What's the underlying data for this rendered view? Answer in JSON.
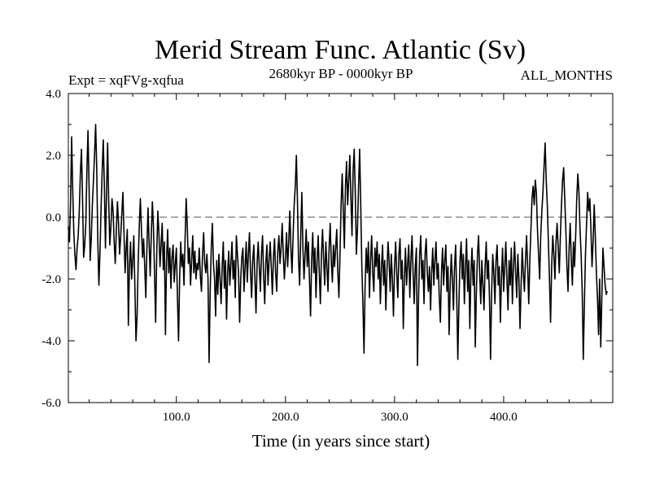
{
  "chart_data": {
    "type": "line",
    "title": "Merid Stream Func. Atlantic (Sv)",
    "left_label": "Expt = xqFVg-xqfua",
    "center_label": "2680kyr BP - 0000kyr BP",
    "right_label": "ALL_MONTHS",
    "xlabel": "Time (in years since start)",
    "ylabel": "",
    "xlim": [
      1,
      500
    ],
    "ylim": [
      -6.0,
      4.0
    ],
    "x_ticks": [
      100,
      200,
      300,
      400
    ],
    "x_tick_labels": [
      "100.0",
      "200.0",
      "300.0",
      "400.0"
    ],
    "y_ticks": [
      -6,
      -4,
      -2,
      0,
      2,
      4
    ],
    "y_tick_labels": [
      "-6.0",
      "-4.0",
      "-2.0",
      "0.0",
      "2.0",
      "4.0"
    ],
    "reference_line": 0.0,
    "series": [
      {
        "name": "Merid Stream Func. Atlantic",
        "x_start": 1,
        "x_step": 1,
        "values": [
          -0.3,
          -0.8,
          0.4,
          2.6,
          0.9,
          -0.5,
          -1.2,
          -1.7,
          -1.0,
          -0.6,
          0.2,
          1.4,
          2.2,
          0.6,
          -1.3,
          -0.9,
          -0.2,
          1.5,
          2.8,
          1.0,
          -1.4,
          -0.7,
          0.4,
          1.2,
          2.0,
          3.0,
          1.6,
          -0.8,
          -2.2,
          -1.1,
          0.3,
          1.5,
          2.5,
          1.0,
          -1.0,
          0.8,
          2.4,
          0.5,
          -0.9,
          -0.3,
          0.6,
          0.2,
          -0.8,
          -1.5,
          -0.4,
          0.5,
          -0.2,
          -1.2,
          -0.6,
          0.1,
          0.8,
          -0.5,
          -1.8,
          -1.0,
          -0.4,
          -3.5,
          -1.6,
          -0.8,
          -2.0,
          -1.4,
          -0.6,
          -2.3,
          -4.0,
          -3.2,
          -1.5,
          -0.3,
          0.6,
          -0.4,
          -1.3,
          -0.7,
          -1.6,
          -2.6,
          -1.0,
          0.3,
          -0.8,
          -1.9,
          -0.6,
          0.5,
          -0.3,
          -1.8,
          -3.4,
          -1.2,
          0.2,
          -0.5,
          -1.6,
          -0.9,
          -0.2,
          -1.7,
          -0.8,
          -3.8,
          -1.4,
          -0.4,
          -1.8,
          -1.0,
          -2.3,
          -1.3,
          -0.9,
          -2.1,
          -1.5,
          -1.0,
          -2.6,
          -4.0,
          -2.0,
          -0.8,
          -1.6,
          -1.2,
          -2.2,
          -0.7,
          0.6,
          -0.3,
          -1.5,
          -1.0,
          -2.2,
          -1.4,
          -0.6,
          -1.8,
          -1.1,
          -2.0,
          -1.5,
          -1.7,
          -1.0,
          -1.9,
          -2.4,
          -1.2,
          -0.5,
          -1.5,
          -1.8,
          -1.2,
          -2.0,
          -4.7,
          -2.4,
          -1.0,
          -0.2,
          -1.5,
          -2.0,
          -3.2,
          -1.4,
          -2.5,
          -1.2,
          -2.0,
          -2.8,
          -1.6,
          -0.8,
          -2.3,
          -1.4,
          -3.3,
          -1.8,
          -1.1,
          -2.2,
          -1.5,
          -0.8,
          -2.0,
          -1.4,
          -2.6,
          -0.6,
          -1.2,
          -1.8,
          -3.4,
          -2.0,
          -1.3,
          -1.0,
          -2.4,
          -1.6,
          -0.8,
          -2.1,
          -1.2,
          -0.5,
          -1.8,
          -2.6,
          -1.4,
          -0.9,
          -2.0,
          -3.1,
          -1.5,
          -0.8,
          -1.6,
          -2.4,
          -1.2,
          -0.6,
          -1.9,
          -2.8,
          -1.5,
          -0.9,
          -2.2,
          -1.4,
          -0.8,
          -1.6,
          -2.5,
          -1.3,
          -0.7,
          -1.8,
          -2.4,
          -1.1,
          -0.6,
          -1.5,
          -1.0,
          -0.2,
          -1.2,
          -2.0,
          -1.3,
          -0.5,
          -1.6,
          -0.8,
          0.2,
          -1.0,
          -1.8,
          -0.6,
          0.4,
          1.0,
          2.0,
          0.5,
          -1.4,
          -2.2,
          -0.6,
          0.8,
          -1.0,
          -2.0,
          -1.2,
          -0.4,
          -1.6,
          -0.8,
          -2.0,
          -3.2,
          -1.4,
          -0.5,
          -1.8,
          -1.0,
          -2.6,
          -1.4,
          -0.6,
          -1.8,
          -2.8,
          -1.2,
          -0.4,
          -1.4,
          -2.2,
          -0.8,
          -1.6,
          -2.4,
          -1.0,
          -0.2,
          -1.4,
          -2.1,
          -0.9,
          -1.6,
          -1.0,
          -0.4,
          -1.8,
          -2.6,
          -1.2,
          0.4,
          1.4,
          0.2,
          -1.0,
          1.0,
          1.8,
          0.4,
          1.2,
          2.0,
          0.6,
          -0.6,
          1.5,
          2.2,
          0.8,
          -1.2,
          -0.4,
          1.0,
          2.2,
          0.4,
          -1.6,
          -2.8,
          -4.4,
          -2.2,
          -1.0,
          -1.8,
          -0.8,
          -2.6,
          -1.4,
          -0.6,
          -1.8,
          -2.4,
          -1.0,
          -1.6,
          -0.8,
          -2.0,
          -1.2,
          -2.8,
          -1.6,
          -0.9,
          -2.2,
          -1.4,
          -3.0,
          -1.8,
          -0.8,
          -1.4,
          -2.4,
          -1.2,
          -2.0,
          -3.2,
          -1.6,
          -0.8,
          -1.8,
          -2.6,
          -1.2,
          -0.7,
          -2.0,
          -1.4,
          -3.6,
          -2.0,
          -1.0,
          -2.2,
          -1.5,
          -0.9,
          -2.6,
          -1.4,
          -0.6,
          -1.8,
          -2.8,
          -1.6,
          -1.0,
          -4.8,
          -2.6,
          -1.2,
          -0.6,
          -2.0,
          -1.4,
          -2.8,
          -1.2,
          -0.7,
          -1.8,
          -2.4,
          -1.6,
          -3.0,
          -1.8,
          -1.0,
          -2.2,
          -1.4,
          -0.8,
          -2.0,
          -1.5,
          -2.6,
          -3.4,
          -1.8,
          -1.0,
          -2.2,
          -1.4,
          -0.9,
          -2.4,
          -1.6,
          -3.8,
          -2.2,
          -1.2,
          -2.0,
          -3.0,
          -1.6,
          -0.9,
          -2.6,
          -4.6,
          -2.8,
          -1.4,
          -0.8,
          -2.0,
          -1.2,
          -2.8,
          -1.6,
          -0.7,
          -2.4,
          -1.4,
          -3.6,
          -1.8,
          -1.0,
          -2.2,
          -1.4,
          -4.2,
          -2.4,
          -1.2,
          -0.6,
          -1.8,
          -2.8,
          -1.4,
          -2.2,
          -3.0,
          -1.6,
          -0.8,
          -2.0,
          -1.4,
          -2.6,
          -4.6,
          -2.4,
          -1.2,
          -1.8,
          -2.8,
          -1.4,
          -0.9,
          -2.2,
          -1.6,
          -3.4,
          -2.0,
          -1.0,
          -2.4,
          -1.6,
          -0.8,
          -2.0,
          -3.0,
          -1.4,
          -2.2,
          -1.0,
          -2.8,
          -1.6,
          -0.8,
          -1.8,
          -2.6,
          -1.2,
          -2.0,
          -3.6,
          -2.2,
          -1.0,
          -1.8,
          -2.4,
          -1.4,
          -0.6,
          -1.6,
          -2.8,
          -1.4,
          -0.4,
          0.6,
          1.0,
          0.4,
          1.2,
          0.8,
          -0.4,
          -1.2,
          -2.0,
          -0.6,
          0.2,
          0.8,
          1.6,
          2.4,
          1.2,
          0.4,
          -0.8,
          -2.0,
          -3.4,
          -1.6,
          -0.6,
          -1.2,
          -2.0,
          -0.8,
          -0.2,
          -1.0,
          -1.8,
          -0.6,
          0.4,
          1.2,
          1.6,
          0.6,
          -0.4,
          -1.6,
          -2.4,
          -1.0,
          -0.2,
          -1.4,
          -2.2,
          -0.8,
          -1.6,
          -0.6,
          0.6,
          1.4,
          0.8,
          -0.4,
          -1.2,
          -2.4,
          -4.6,
          -2.8,
          -1.2,
          -0.2,
          0.8,
          0.2,
          0.6,
          -0.4,
          -1.6,
          -0.8,
          0.4,
          -0.6,
          -1.8,
          -2.6,
          -3.8,
          -2.0,
          -4.2,
          -2.6,
          -1.0,
          -1.6,
          -2.2,
          -2.5,
          -2.4
        ]
      }
    ]
  }
}
